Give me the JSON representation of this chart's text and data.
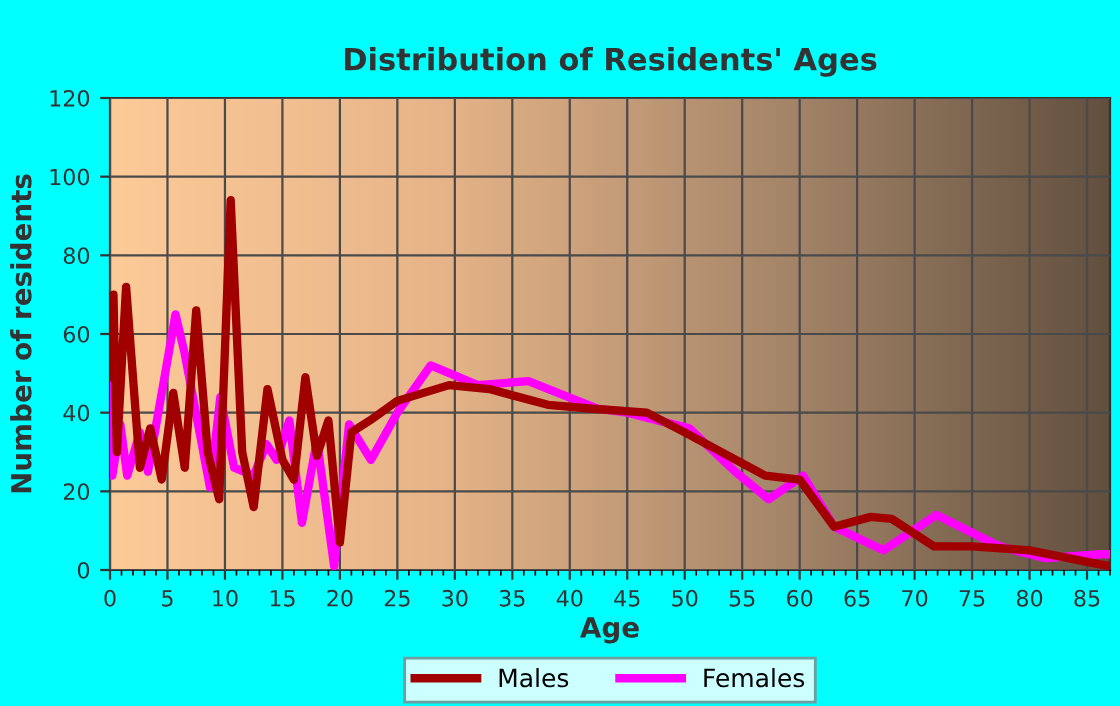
{
  "chart_data": {
    "type": "line",
    "title": "Distribution of Residents' Ages",
    "xlabel": "Age",
    "ylabel": "Number of residents",
    "xlim": [
      0,
      87
    ],
    "xticks": [
      0,
      5,
      10,
      15,
      20,
      25,
      30,
      35,
      40,
      45,
      50,
      55,
      60,
      65,
      70,
      75,
      80,
      85
    ],
    "ylim": [
      0,
      120
    ],
    "yticks": [
      0,
      20,
      40,
      60,
      80,
      100,
      120
    ],
    "grid": true,
    "legend": "bottom",
    "line_style": "solid",
    "marker": "none",
    "series": [
      {
        "name": "Males",
        "color": "#a00000",
        "x": [
          0,
          0.3,
          0.6,
          1.4,
          2.6,
          3.5,
          4.5,
          5.5,
          6.5,
          7.5,
          8.5,
          9.5,
          10.5,
          11.5,
          12.5,
          13.7,
          15,
          16,
          17,
          18,
          19,
          20,
          21,
          22.6,
          25,
          29.5,
          33,
          38.1,
          42,
          46.7,
          50,
          57,
          60,
          63,
          66.2,
          68,
          71.7,
          75,
          80,
          86,
          87
        ],
        "values": [
          49,
          70,
          30,
          72,
          26,
          36,
          23,
          45,
          26,
          66,
          30,
          18,
          94,
          30,
          16,
          46,
          28,
          23,
          49,
          29,
          38,
          7,
          35,
          38,
          43,
          47,
          46,
          42,
          41,
          40,
          35,
          24,
          23,
          11,
          13.5,
          13,
          6,
          6,
          5,
          1.5,
          1
        ]
      },
      {
        "name": "Females",
        "color": "#ff00ff",
        "x": [
          0,
          0.2,
          0.9,
          1.5,
          2.6,
          3.3,
          5.7,
          6.5,
          8.7,
          9.6,
          10.8,
          12.5,
          13.6,
          14.5,
          15.6,
          16.7,
          18,
          19.5,
          20.8,
          22.7,
          25,
          27.9,
          32,
          36.4,
          42.4,
          45,
          50.4,
          54.4,
          57.3,
          60.3,
          63,
          67.3,
          71.9,
          77.4,
          81.4,
          86.1,
          87
        ],
        "values": [
          48,
          24,
          37,
          24,
          35,
          25,
          65,
          55,
          21,
          44,
          26,
          24,
          32,
          28,
          38,
          12,
          33,
          1,
          37,
          28,
          40,
          52,
          47,
          48,
          41,
          40,
          36,
          25,
          18,
          24,
          11,
          5,
          14,
          6,
          3,
          4,
          4
        ]
      }
    ]
  }
}
